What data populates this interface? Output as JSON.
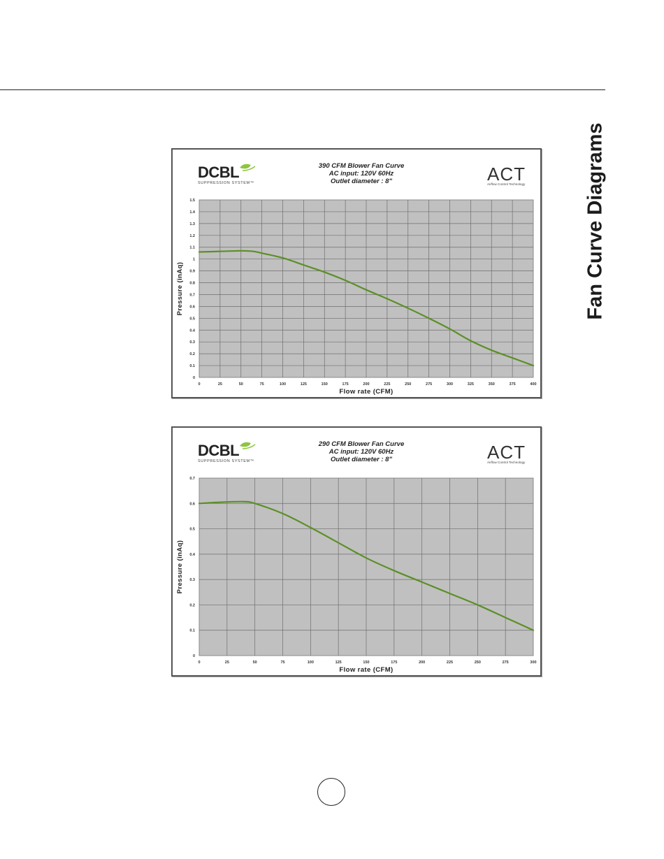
{
  "page": {
    "side_title": "Fan Curve Diagrams"
  },
  "chart_data": [
    {
      "type": "line",
      "title": "390 CFM Blower Fan Curve",
      "subtitle": [
        "AC input: 120V  60Hz",
        "Outlet diameter : 8\""
      ],
      "xlabel": "Flow rate (CFM)",
      "ylabel": "Pressure (inAq)",
      "xlim": [
        0,
        400
      ],
      "ylim": [
        0,
        1.5
      ],
      "xticks": [
        0,
        25,
        50,
        75,
        100,
        125,
        150,
        175,
        200,
        225,
        250,
        275,
        300,
        325,
        350,
        375,
        400
      ],
      "xtick_labels": [
        "0",
        "25",
        "50",
        "75",
        "100",
        "125",
        "150",
        "175",
        "200",
        "225",
        "250",
        "275",
        "300",
        "325",
        "350",
        "375",
        "400"
      ],
      "yticks": [
        0,
        0.1,
        0.2,
        0.3,
        0.4,
        0.5,
        0.6,
        0.7,
        0.8,
        0.9,
        1.0,
        1.1,
        1.2,
        1.3,
        1.4,
        1.5
      ],
      "ytick_labels": [
        "0",
        "0.1",
        "0.2",
        "0.3",
        "0.4",
        "0.5",
        "0.6",
        "0.7",
        "0.8",
        "0.9",
        "1",
        "1.1",
        "1.2",
        "1.3",
        "1.4",
        "1.5"
      ],
      "grid": true,
      "series": [
        {
          "color": "#5c8f26",
          "x": [
            0,
            25,
            50,
            65,
            75,
            100,
            125,
            150,
            175,
            200,
            225,
            250,
            275,
            300,
            325,
            350,
            375,
            400
          ],
          "y": [
            1.06,
            1.065,
            1.07,
            1.065,
            1.05,
            1.01,
            0.95,
            0.89,
            0.82,
            0.74,
            0.665,
            0.585,
            0.5,
            0.41,
            0.31,
            0.23,
            0.165,
            0.1
          ]
        }
      ],
      "branding": {
        "left_logo": "DCBL",
        "left_logo_sub": "SUPPRESSION SYSTEM™",
        "right_logo": "ACT",
        "right_logo_sub": "Airflow Control Technology"
      }
    },
    {
      "type": "line",
      "title": "290 CFM Blower Fan Curve",
      "subtitle": [
        "AC input: 120V  60Hz",
        "Outlet diameter : 8\""
      ],
      "xlabel": "Flow rate (CFM)",
      "ylabel": "Pressure (inAq)",
      "xlim": [
        0,
        300
      ],
      "ylim": [
        0,
        0.7
      ],
      "xticks": [
        0,
        25,
        50,
        75,
        100,
        125,
        150,
        175,
        200,
        225,
        250,
        275,
        300
      ],
      "xtick_labels": [
        "0",
        "25",
        "50",
        "75",
        "100",
        "125",
        "150",
        "175",
        "200",
        "225",
        "250",
        "275",
        "300"
      ],
      "yticks": [
        0,
        0.1,
        0.2,
        0.3,
        0.4,
        0.5,
        0.6,
        0.7
      ],
      "ytick_labels": [
        "0",
        "0.1",
        "0.2",
        "0.3",
        "0.4",
        "0.5",
        "0.6",
        "0.7"
      ],
      "grid": true,
      "series": [
        {
          "color": "#5c8f26",
          "x": [
            0,
            20,
            40,
            50,
            75,
            100,
            125,
            150,
            175,
            200,
            225,
            250,
            275,
            300
          ],
          "y": [
            0.6,
            0.605,
            0.607,
            0.6,
            0.56,
            0.505,
            0.445,
            0.385,
            0.335,
            0.29,
            0.245,
            0.2,
            0.15,
            0.1
          ]
        }
      ],
      "branding": {
        "left_logo": "DCBL",
        "left_logo_sub": "SUPPRESSION SYSTEM™",
        "right_logo": "ACT",
        "right_logo_sub": "Airflow Control Technology"
      }
    }
  ]
}
